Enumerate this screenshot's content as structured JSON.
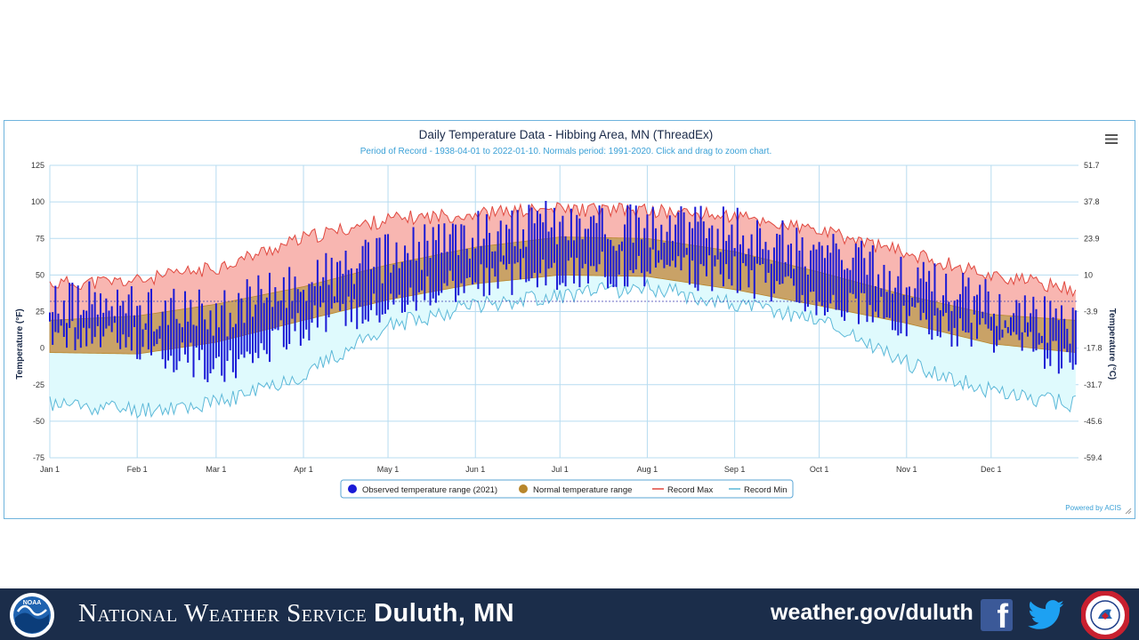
{
  "chart_data": {
    "type": "area",
    "title": "Daily Temperature Data - Hibbing Area, MN (ThreadEx)",
    "subtitle": "Period of Record - 1938-04-01 to 2022-01-10. Normals period: 1991-2020. Click and drag to zoom chart.",
    "ylabel": "Temperature (°F)",
    "ylabel_right": "Temperature (°C)",
    "ylim": [
      -75,
      125
    ],
    "yticks": [
      "125",
      "100",
      "75",
      "50",
      "25",
      "0",
      "-25",
      "-50",
      "-75"
    ],
    "yticks_right": [
      "51.7",
      "37.8",
      "23.9",
      "10",
      "-3.9",
      "-17.8",
      "-31.7",
      "-45.6",
      "-59.4"
    ],
    "xticks": [
      "Jan 1",
      "Feb 1",
      "Mar 1",
      "Apr 1",
      "May 1",
      "Jun 1",
      "Jul 1",
      "Aug 1",
      "Sep 1",
      "Oct 1",
      "Nov 1",
      "Dec 1"
    ],
    "grid": true,
    "legend_position": "bottom",
    "credit": "Powered by ACIS",
    "menu_icon": "hamburger-menu-icon",
    "colors": {
      "observed": "#1a1ad6",
      "normal_fill": "#c9a267",
      "normal_stroke": "#b8862b",
      "record_max_line": "#e0483f",
      "record_max_fill": "#f8b6b1",
      "record_min_line": "#5cb8d8",
      "record_min_fill": "#dffafd",
      "title": "#1b2b4a",
      "subtitle": "#3aa0d6"
    },
    "series": [
      {
        "name": "Observed temperature range (2021)",
        "type": "range-bar",
        "x": [
          "Jan 1",
          "Feb 1",
          "Mar 1",
          "Apr 1",
          "May 1",
          "Jun 1",
          "Jul 1",
          "Aug 1",
          "Sep 1",
          "Oct 1",
          "Nov 1",
          "Dec 1",
          "Dec 31"
        ],
        "high": [
          30,
          28,
          22,
          45,
          62,
          78,
          85,
          82,
          80,
          65,
          48,
          30,
          15
        ],
        "low": [
          8,
          5,
          -15,
          15,
          32,
          45,
          52,
          55,
          50,
          35,
          20,
          8,
          -10
        ]
      },
      {
        "name": "Normal temperature range",
        "type": "area-range",
        "x": [
          "Jan 1",
          "Feb 1",
          "Mar 1",
          "Apr 1",
          "May 1",
          "Jun 1",
          "Jul 1",
          "Aug 1",
          "Sep 1",
          "Oct 1",
          "Nov 1",
          "Dec 1",
          "Dec 31"
        ],
        "high": [
          19,
          22,
          30,
          42,
          57,
          69,
          76,
          75,
          66,
          52,
          36,
          23,
          19
        ],
        "low": [
          -3,
          -4,
          4,
          19,
          33,
          44,
          50,
          49,
          40,
          29,
          17,
          3,
          -3
        ]
      },
      {
        "name": "Record Max",
        "type": "line",
        "x": [
          "Jan 1",
          "Feb 1",
          "Mar 1",
          "Apr 1",
          "May 1",
          "Jun 1",
          "Jul 1",
          "Aug 1",
          "Sep 1",
          "Oct 1",
          "Nov 1",
          "Dec 1",
          "Dec 31"
        ],
        "values": [
          44,
          46,
          55,
          75,
          88,
          92,
          95,
          94,
          90,
          80,
          65,
          50,
          40
        ]
      },
      {
        "name": "Record Min",
        "type": "line",
        "x": [
          "Jan 1",
          "Feb 1",
          "Mar 1",
          "Apr 1",
          "May 1",
          "Jun 1",
          "Jul 1",
          "Aug 1",
          "Sep 1",
          "Oct 1",
          "Nov 1",
          "Dec 1",
          "Dec 31"
        ],
        "values": [
          -38,
          -42,
          -38,
          -18,
          15,
          30,
          36,
          42,
          30,
          20,
          -10,
          -30,
          -38
        ]
      }
    ]
  },
  "footer": {
    "agency": "National Weather Service",
    "office": "Duluth, MN",
    "website": "weather.gov/duluth",
    "facebook_glyph": "f",
    "noaa_logo": "NOAA",
    "icons": [
      "noaa-logo",
      "facebook-icon",
      "twitter-icon",
      "nws-seal"
    ]
  }
}
